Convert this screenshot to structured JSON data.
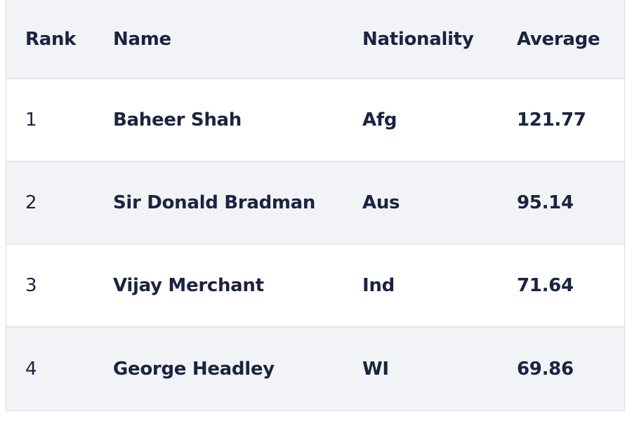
{
  "table": {
    "headers": [
      "Rank",
      "Name",
      "Nationality",
      "Average"
    ],
    "rows": [
      {
        "rank": "1",
        "name": "Baheer Shah",
        "nationality": "Afg",
        "average": "121.77"
      },
      {
        "rank": "2",
        "name": "Sir Donald Bradman",
        "nationality": "Aus",
        "average": "95.14"
      },
      {
        "rank": "3",
        "name": "Vijay Merchant",
        "nationality": "Ind",
        "average": "71.64"
      },
      {
        "rank": "4",
        "name": "George Headley",
        "nationality": "WI",
        "average": "69.86"
      }
    ]
  },
  "colors": {
    "text": "#1b2340",
    "stripe": "#f1f3f6",
    "border": "#e2e5ea"
  }
}
